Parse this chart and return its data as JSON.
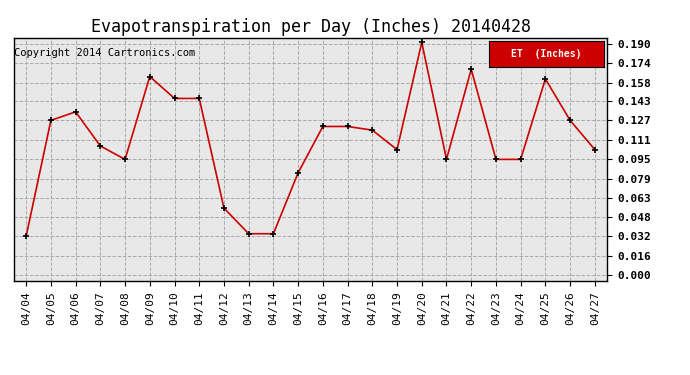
{
  "title": "Evapotranspiration per Day (Inches) 20140428",
  "copyright_text": "Copyright 2014 Cartronics.com",
  "legend_label": "ET  (Inches)",
  "legend_bg": "#cc0000",
  "legend_text_color": "#ffffff",
  "dates": [
    "04/04",
    "04/05",
    "04/06",
    "04/07",
    "04/08",
    "04/09",
    "04/10",
    "04/11",
    "04/12",
    "04/13",
    "04/14",
    "04/15",
    "04/16",
    "04/17",
    "04/18",
    "04/19",
    "04/20",
    "04/21",
    "04/22",
    "04/23",
    "04/24",
    "04/25",
    "04/26",
    "04/27"
  ],
  "values": [
    0.032,
    0.127,
    0.134,
    0.106,
    0.095,
    0.163,
    0.145,
    0.145,
    0.055,
    0.034,
    0.034,
    0.084,
    0.122,
    0.122,
    0.119,
    0.103,
    0.191,
    0.095,
    0.169,
    0.095,
    0.095,
    0.161,
    0.127,
    0.103
  ],
  "line_color": "#cc0000",
  "marker_color": "#000000",
  "bg_color": "#ffffff",
  "plot_bg_color": "#e8e8e8",
  "grid_color": "#aaaaaa",
  "ylim_min": 0.0,
  "ylim_max": 0.19,
  "yticks": [
    0.0,
    0.016,
    0.032,
    0.048,
    0.063,
    0.079,
    0.095,
    0.111,
    0.127,
    0.143,
    0.158,
    0.174,
    0.19
  ],
  "title_fontsize": 12,
  "tick_fontsize": 8,
  "copyright_fontsize": 7.5
}
